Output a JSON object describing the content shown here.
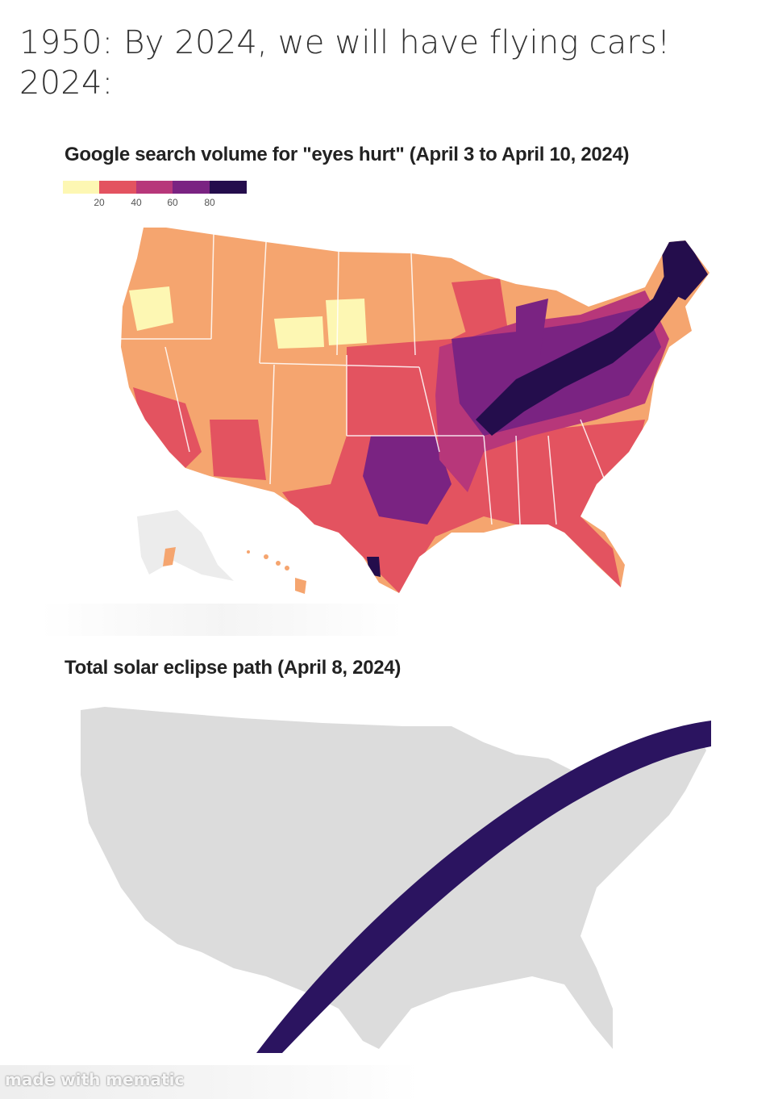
{
  "caption": {
    "line1": "1950: By 2024, we will have flying cars!",
    "line2": "2024:"
  },
  "map1": {
    "title": "Google search volume for \"eyes hurt\" (April 3 to April 10, 2024)",
    "legend": {
      "colors": [
        "#fdf7b3",
        "#f9a36f",
        "#e35360",
        "#b7377a",
        "#7a2382",
        "#240d4c"
      ],
      "ticks": [
        "20",
        "40",
        "60",
        "80"
      ]
    },
    "land_color": "#f5a56f",
    "alaska_color": "#e8e8e8"
  },
  "map2": {
    "title": "Total solar eclipse path (April 8, 2024)",
    "land_color": "#dcdcdc",
    "path_color": "#2b1460"
  },
  "watermark": "made with mematic"
}
